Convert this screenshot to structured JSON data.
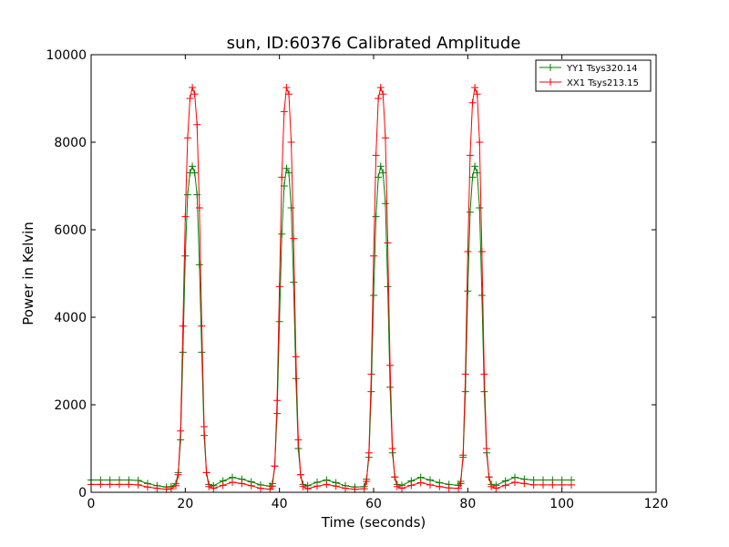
{
  "chart_data": {
    "type": "line",
    "title": "sun, ID:60376 Calibrated Amplitude",
    "xlabel": "Time (seconds)",
    "ylabel": "Power in Kelvin",
    "xlim": [
      0,
      120
    ],
    "ylim": [
      0,
      10000
    ],
    "xticks": [
      0,
      20,
      40,
      60,
      80,
      100,
      120
    ],
    "yticks": [
      0,
      2000,
      4000,
      6000,
      8000,
      10000
    ],
    "grid": false,
    "legend_position": "top-right",
    "marker": "plus",
    "series": [
      {
        "name": "YY1 Tsys320.14",
        "color": "#008000",
        "x": [
          0,
          2,
          4,
          6,
          8,
          10,
          12,
          14,
          16,
          17,
          18,
          18.5,
          19,
          19.5,
          20,
          20.5,
          21,
          21.5,
          22,
          22.5,
          23,
          23.5,
          24,
          24.5,
          25,
          26,
          28,
          30,
          32,
          34,
          36,
          38,
          38.5,
          39,
          39.5,
          40,
          40.5,
          41,
          41.5,
          42,
          42.5,
          43,
          43.5,
          44,
          44.5,
          45,
          46,
          48,
          50,
          52,
          54,
          56,
          58,
          58.5,
          59,
          59.5,
          60,
          60.5,
          61,
          61.5,
          62,
          62.5,
          63,
          63.5,
          64,
          64.5,
          65,
          66,
          68,
          70,
          72,
          74,
          76,
          78,
          78.5,
          79,
          79.5,
          80,
          80.5,
          81,
          81.5,
          82,
          82.5,
          83,
          83.5,
          84,
          84.5,
          85,
          86,
          88,
          90,
          92,
          94,
          96,
          98,
          100,
          102
        ],
        "y": [
          280,
          280,
          280,
          280,
          280,
          270,
          200,
          150,
          120,
          130,
          200,
          450,
          1200,
          3200,
          5400,
          6800,
          7300,
          7450,
          7300,
          6800,
          5200,
          3200,
          1300,
          450,
          180,
          150,
          260,
          340,
          300,
          240,
          170,
          140,
          200,
          600,
          1800,
          3900,
          5900,
          7000,
          7400,
          7300,
          6500,
          4800,
          2600,
          1000,
          400,
          180,
          150,
          230,
          280,
          220,
          150,
          120,
          130,
          300,
          800,
          2300,
          4500,
          6300,
          7200,
          7450,
          7300,
          6600,
          4700,
          2400,
          900,
          350,
          180,
          160,
          260,
          340,
          280,
          220,
          180,
          160,
          250,
          800,
          2300,
          4600,
          6400,
          7200,
          7450,
          7300,
          6500,
          4500,
          2300,
          900,
          350,
          180,
          160,
          260,
          340,
          300,
          280,
          280,
          280,
          280,
          280
        ]
      },
      {
        "name": "XX1 Tsys213.15",
        "color": "#ff0000",
        "x": [
          0,
          2,
          4,
          6,
          8,
          10,
          12,
          14,
          16,
          17,
          18,
          18.5,
          19,
          19.5,
          20,
          20.5,
          21,
          21.5,
          22,
          22.5,
          23,
          23.5,
          24,
          24.5,
          25,
          26,
          28,
          30,
          32,
          34,
          36,
          38,
          38.5,
          39,
          39.5,
          40,
          40.5,
          41,
          41.5,
          42,
          42.5,
          43,
          43.5,
          44,
          44.5,
          45,
          46,
          48,
          50,
          52,
          54,
          56,
          58,
          58.5,
          59,
          59.5,
          60,
          60.5,
          61,
          61.5,
          62,
          62.5,
          63,
          63.5,
          64,
          64.5,
          65,
          66,
          68,
          70,
          72,
          74,
          76,
          78,
          78.5,
          79,
          79.5,
          80,
          80.5,
          81,
          81.5,
          82,
          82.5,
          83,
          83.5,
          84,
          84.5,
          85,
          86,
          88,
          90,
          92,
          94,
          96,
          98,
          100,
          102
        ],
        "y": [
          180,
          180,
          180,
          180,
          180,
          170,
          120,
          90,
          70,
          80,
          150,
          400,
          1400,
          3800,
          6300,
          8100,
          9000,
          9250,
          9100,
          8400,
          6500,
          3800,
          1500,
          450,
          130,
          90,
          160,
          230,
          200,
          150,
          90,
          70,
          140,
          600,
          2100,
          4700,
          7200,
          8700,
          9250,
          9100,
          8000,
          5800,
          3100,
          1200,
          400,
          130,
          80,
          140,
          180,
          140,
          90,
          70,
          80,
          250,
          900,
          2700,
          5400,
          7700,
          9000,
          9250,
          9100,
          8100,
          5700,
          2900,
          1000,
          350,
          130,
          90,
          160,
          220,
          170,
          130,
          100,
          90,
          200,
          850,
          2700,
          5500,
          7700,
          8900,
          9250,
          9100,
          8000,
          5500,
          2700,
          1000,
          350,
          130,
          90,
          160,
          230,
          200,
          170,
          170,
          170,
          170,
          170
        ]
      }
    ]
  }
}
